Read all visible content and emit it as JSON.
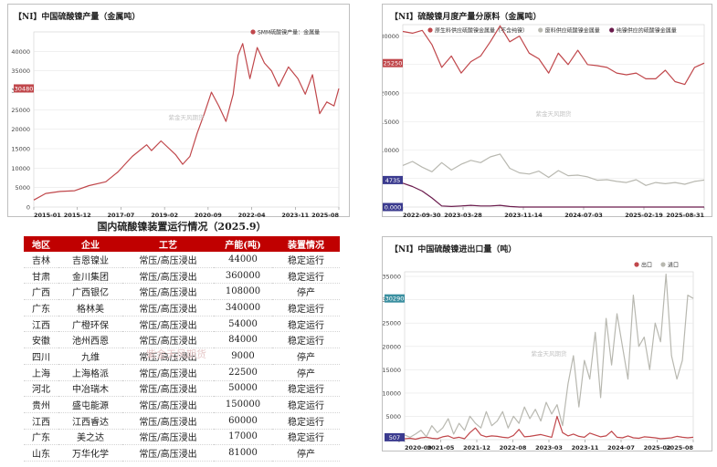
{
  "colors": {
    "red": "#c0474b",
    "grey": "#b8b8b0",
    "purple": "#6a1a4c",
    "header_bg": "#c00000",
    "highlight_red": "#c0474b",
    "highlight_teal": "#3a8fa0",
    "highlight_navy": "#3b3b8f"
  },
  "watermark": "紫金天风期货",
  "table": {
    "title": "国内硫酸镍装置运行情况（2025.9）",
    "headers": [
      "地区",
      "企业",
      "工艺",
      "产能(吨)",
      "装置情况"
    ],
    "rows": [
      [
        "吉林",
        "吉恩镍业",
        "常压/高压浸出",
        "44000",
        "稳定运行"
      ],
      [
        "甘肃",
        "金川集团",
        "常压/高压浸出",
        "360000",
        "稳定运行"
      ],
      [
        "广西",
        "广西银亿",
        "常压/高压浸出",
        "108000",
        "停产"
      ],
      [
        "广东",
        "格林美",
        "常压/高压浸出",
        "340000",
        "稳定运行"
      ],
      [
        "江西",
        "广橙环保",
        "常压/高压浸出",
        "54000",
        "稳定运行"
      ],
      [
        "安徽",
        "池州西恩",
        "常压/高压浸出",
        "84000",
        "稳定运行"
      ],
      [
        "四川",
        "九维",
        "常压/高压浸出",
        "9000",
        "停产"
      ],
      [
        "上海",
        "上海格派",
        "常压/高压浸出",
        "22500",
        "停产"
      ],
      [
        "河北",
        "中冶瑞木",
        "常压/高压浸出",
        "50000",
        "稳定运行"
      ],
      [
        "贵州",
        "盛屯能源",
        "常压/高压浸出",
        "150000",
        "稳定运行"
      ],
      [
        "江西",
        "江西睿达",
        "常压/高压浸出",
        "60000",
        "稳定运行"
      ],
      [
        "广东",
        "美之达",
        "常压/高压浸出",
        "17000",
        "稳定运行"
      ],
      [
        "山东",
        "万华化学",
        "常压/高压浸出",
        "81000",
        "停产"
      ]
    ]
  },
  "chart_data": [
    {
      "type": "line",
      "title": "【NI】中国硫酸镍产量（金属吨）",
      "legend": [
        "SMM硫酸镍产量：金属量"
      ],
      "ylim": [
        0,
        45000
      ],
      "yticks": [
        "0",
        "5000",
        "10000",
        "15000",
        "20000",
        "25000",
        "30000",
        "35000",
        "40000"
      ],
      "xticks": [
        "2015-01",
        "2015-12",
        "2017-07",
        "2019-02",
        "2020-09",
        "2022-04",
        "2023-11",
        "2025-08"
      ],
      "last_value_label": "30480",
      "series": [
        {
          "name": "SMM硫酸镍产量：金属量",
          "x": [
            "2015-01",
            "2015-06",
            "2015-12",
            "2016-06",
            "2016-12",
            "2017-07",
            "2017-12",
            "2018-06",
            "2018-12",
            "2019-02",
            "2019-06",
            "2019-12",
            "2020-03",
            "2020-06",
            "2020-09",
            "2020-12",
            "2021-03",
            "2021-06",
            "2021-09",
            "2021-12",
            "2022-02",
            "2022-04",
            "2022-07",
            "2022-10",
            "2023-01",
            "2023-04",
            "2023-07",
            "2023-11",
            "2024-03",
            "2024-06",
            "2024-09",
            "2024-12",
            "2025-03",
            "2025-06",
            "2025-08"
          ],
          "values": [
            1800,
            3500,
            4000,
            4200,
            5500,
            6500,
            9000,
            13000,
            16000,
            14500,
            17000,
            13500,
            11000,
            13000,
            19000,
            24000,
            29500,
            26000,
            22000,
            29000,
            39000,
            42000,
            33000,
            41000,
            37000,
            35000,
            31000,
            36000,
            33000,
            29000,
            34000,
            24000,
            27000,
            26000,
            30480
          ]
        }
      ]
    },
    {
      "type": "line",
      "title": "【NI】硫酸镍月度产量分原料（金属吨）",
      "legend": [
        "原生料供应硫酸镍金属量（不含纯镍）",
        "废料供应硫酸镍金属量",
        "纯镍供应的硫酸镍金属量"
      ],
      "ylim": [
        0,
        32000
      ],
      "yticks": [
        "0",
        "5000",
        "10000",
        "15000",
        "20000",
        "25000",
        "30000"
      ],
      "xticks": [
        "2022-09-30",
        "2023-03-28",
        "2023-11-14",
        "2024-07-03",
        "2025-02-19",
        "2025-08-31"
      ],
      "value_labels": [
        "25250",
        "4735",
        "0.000"
      ],
      "series": [
        {
          "name": "原生料供应硫酸镍金属量（不含纯镍）",
          "values": [
            30800,
            30500,
            31000,
            28500,
            24500,
            26500,
            23500,
            25500,
            26500,
            29000,
            31800,
            29000,
            30000,
            27000,
            26000,
            23500,
            27000,
            25000,
            27500,
            25000,
            24800,
            24500,
            23500,
            23200,
            23500,
            22500,
            22500,
            24000,
            22000,
            21500,
            24500,
            25250
          ]
        },
        {
          "name": "废料供应硫酸镍金属量",
          "values": [
            7300,
            8000,
            7000,
            6200,
            7800,
            6500,
            7500,
            8200,
            7800,
            8800,
            9300,
            6800,
            6000,
            5800,
            6300,
            5200,
            6400,
            5500,
            5600,
            5300,
            4700,
            4800,
            4500,
            4300,
            4800,
            3800,
            4300,
            4100,
            4300,
            4000,
            4500,
            4735
          ]
        },
        {
          "name": "纯镍供应的硫酸镍金属量",
          "values": [
            4200,
            3600,
            2800,
            1600,
            200,
            100,
            200,
            300,
            200,
            200,
            300,
            100,
            0,
            0,
            0,
            0,
            0,
            0,
            0,
            0,
            0,
            0,
            0,
            0,
            0,
            0,
            0,
            0,
            0,
            0,
            0,
            0
          ]
        }
      ]
    },
    {
      "type": "line",
      "title": "【NI】中国硫酸镍进出口量（吨）",
      "legend": [
        "出口",
        "进口"
      ],
      "ylim": [
        0,
        36000
      ],
      "yticks": [
        "0",
        "5000",
        "10000",
        "15000",
        "20000",
        "25000",
        "30000",
        "35000"
      ],
      "xticks": [
        "2020-09",
        "2021-05",
        "2021-12",
        "2022-08",
        "2023-03",
        "2023-11",
        "2024-07",
        "2025-02",
        "2025-08"
      ],
      "value_labels": [
        "30290",
        "507"
      ],
      "series": [
        {
          "name": "出口",
          "values": [
            200,
            300,
            100,
            400,
            500,
            300,
            200,
            600,
            800,
            300,
            500,
            200,
            1500,
            2500,
            1000,
            600,
            800,
            700,
            500,
            400,
            900,
            2200,
            600,
            700,
            900,
            1100,
            800,
            500,
            5000,
            1500,
            800,
            1200,
            700,
            500,
            1400,
            1000,
            600,
            800,
            1800,
            500,
            400,
            800,
            400,
            300,
            600,
            500,
            400,
            200,
            300,
            400,
            700,
            500,
            400,
            507
          ]
        },
        {
          "name": "进口",
          "values": [
            1000,
            500,
            1200,
            2000,
            600,
            3000,
            1500,
            2500,
            4500,
            1200,
            3500,
            2000,
            5000,
            3500,
            2500,
            6000,
            3000,
            4000,
            6000,
            2500,
            5000,
            3500,
            7000,
            4500,
            6500,
            4000,
            8000,
            5500,
            7500,
            3000,
            12000,
            18000,
            7000,
            17000,
            13000,
            23000,
            9000,
            26000,
            16000,
            27000,
            20000,
            13000,
            31000,
            20000,
            22000,
            15000,
            25000,
            21000,
            35500,
            18000,
            13000,
            17000,
            31000,
            30290
          ]
        }
      ]
    }
  ]
}
